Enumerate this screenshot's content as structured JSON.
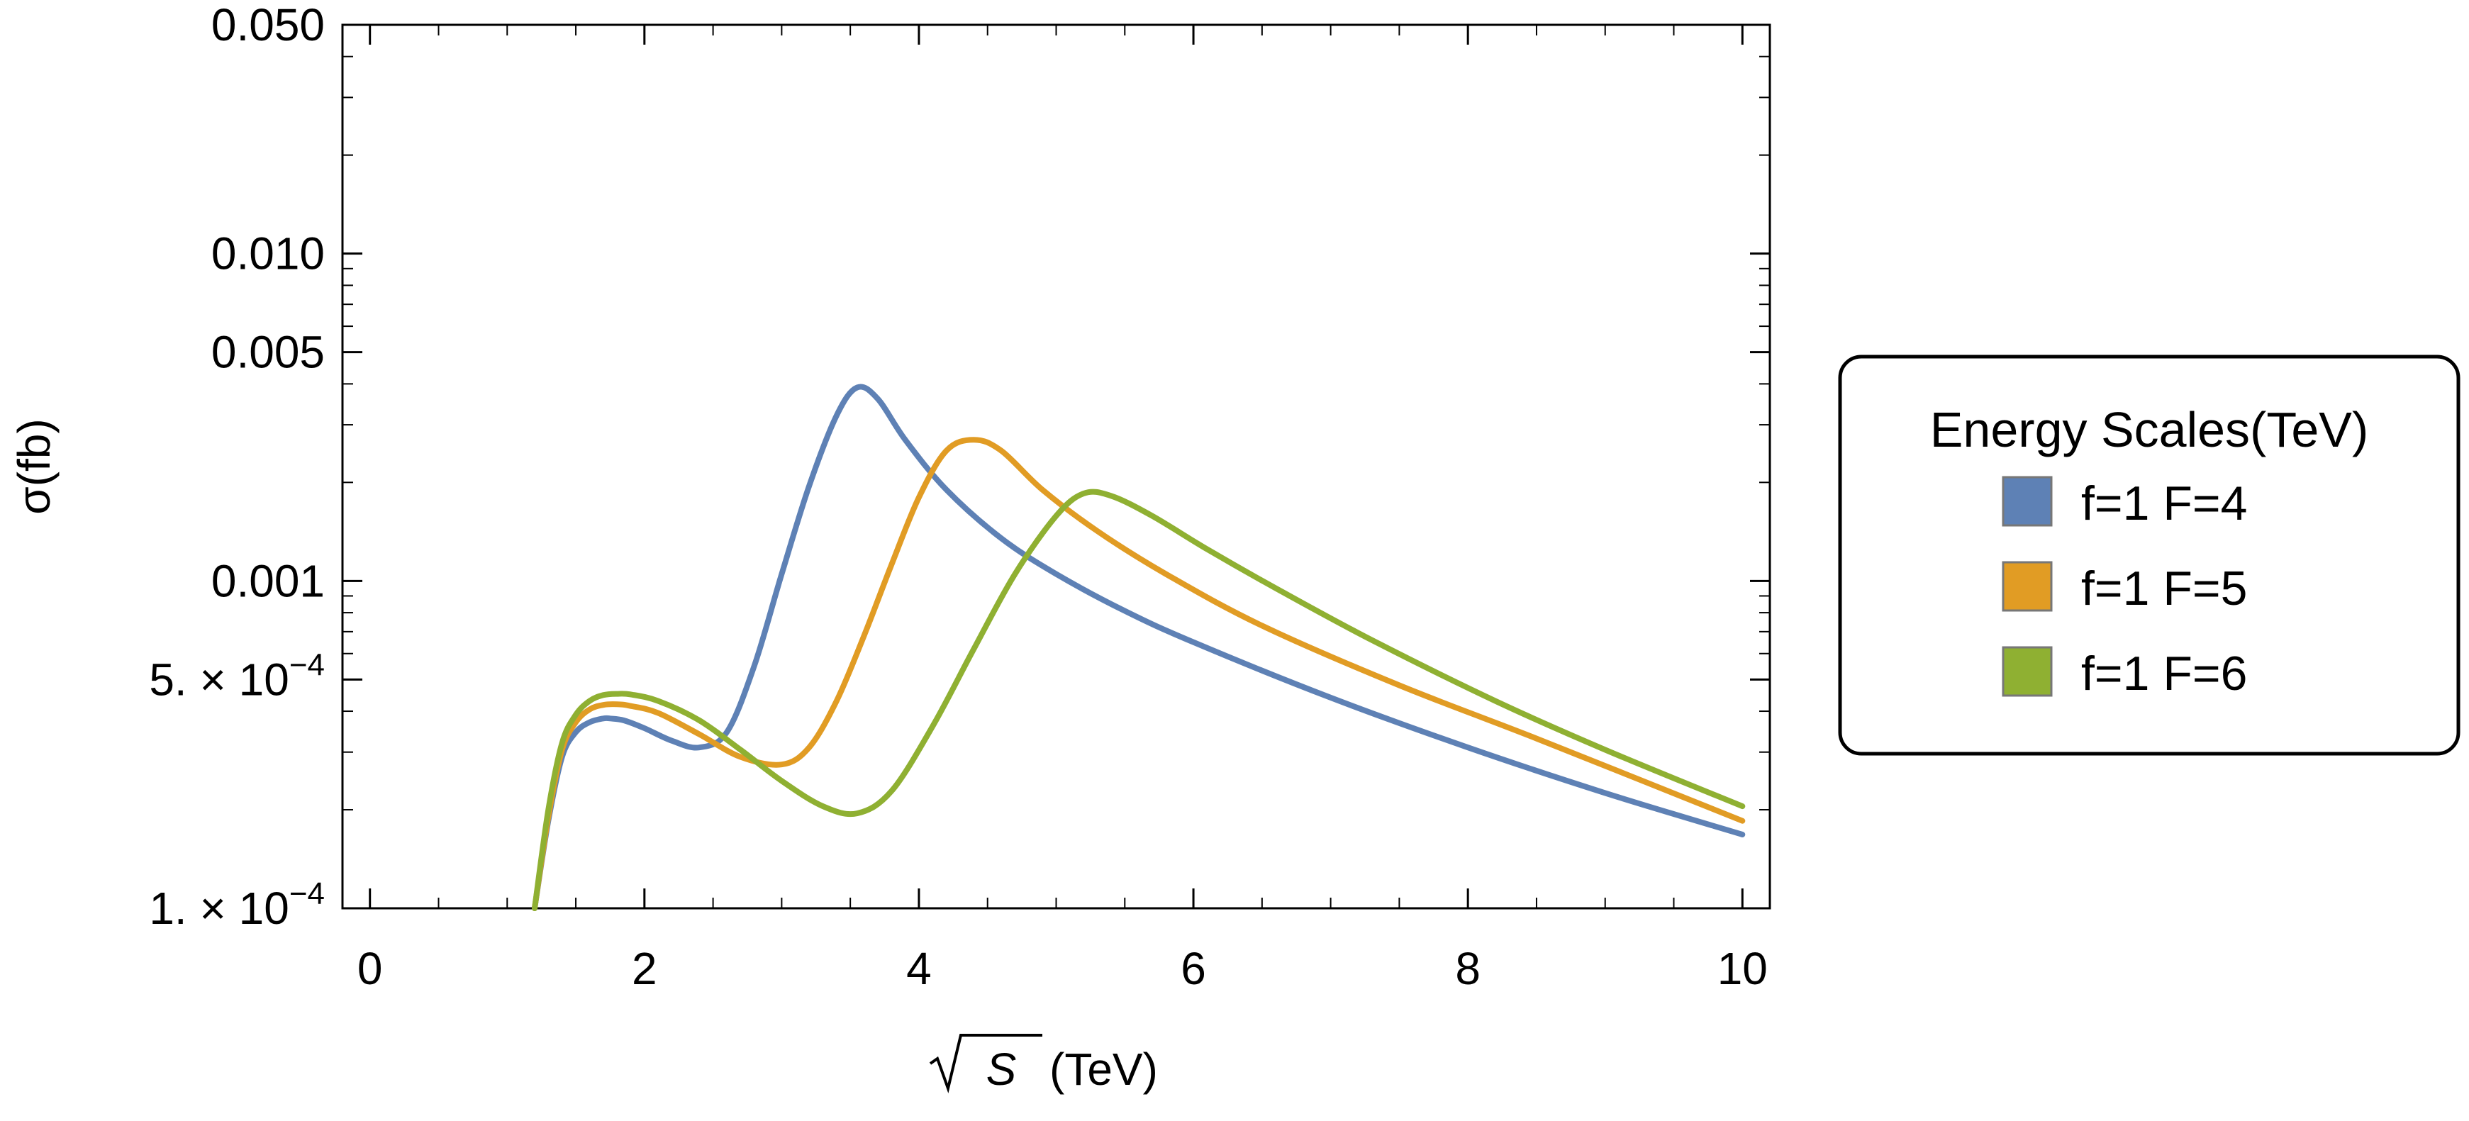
{
  "chart_data": {
    "type": "line",
    "xlabel": "(TeV)",
    "xlabel_math": "S",
    "ylabel": "σ(fb)",
    "xlim": [
      -0.2,
      10.2
    ],
    "ylim": [
      0.0001,
      0.05
    ],
    "yscale": "log",
    "x_ticks": [
      {
        "value": 0,
        "label": "0"
      },
      {
        "value": 2,
        "label": "2"
      },
      {
        "value": 4,
        "label": "4"
      },
      {
        "value": 6,
        "label": "6"
      },
      {
        "value": 8,
        "label": "8"
      },
      {
        "value": 10,
        "label": "10"
      }
    ],
    "y_ticks": [
      {
        "value": 0.0001,
        "mantissa": "1. × 10",
        "exp": "−4"
      },
      {
        "value": 0.0005,
        "mantissa": "5. × 10",
        "exp": "−4"
      },
      {
        "value": 0.001,
        "label": "0.001"
      },
      {
        "value": 0.005,
        "label": "0.005"
      },
      {
        "value": 0.01,
        "label": "0.010"
      },
      {
        "value": 0.05,
        "label": "0.050"
      }
    ],
    "grid": false,
    "legend": {
      "title": "Energy Scales(TeV)",
      "placement": "right"
    },
    "series": [
      {
        "name": "f=1 F=4",
        "color": "#5E81B5",
        "x": [
          1.2,
          1.3,
          1.4,
          1.5,
          1.6,
          1.7,
          1.75,
          1.85,
          2.0,
          2.2,
          2.4,
          2.6,
          2.8,
          3.0,
          3.2,
          3.4,
          3.55,
          3.7,
          3.9,
          4.2,
          4.6,
          5.0,
          5.5,
          6.0,
          7.0,
          8.0,
          9.0,
          10.0
        ],
        "y": [
          0.0001,
          0.000185,
          0.00029,
          0.000345,
          0.00037,
          0.00038,
          0.00038,
          0.000375,
          0.000355,
          0.000325,
          0.00031,
          0.000345,
          0.00055,
          0.00105,
          0.00195,
          0.0032,
          0.0039,
          0.0036,
          0.0027,
          0.0019,
          0.00135,
          0.00105,
          0.00081,
          0.00065,
          0.00044,
          0.00031,
          0.000225,
          0.000168
        ]
      },
      {
        "name": "f=1 F=5",
        "color": "#E19C24",
        "x": [
          1.2,
          1.3,
          1.4,
          1.5,
          1.6,
          1.7,
          1.8,
          1.9,
          2.1,
          2.4,
          2.7,
          3.0,
          3.2,
          3.4,
          3.6,
          3.8,
          4.0,
          4.2,
          4.4,
          4.6,
          4.9,
          5.3,
          5.8,
          6.5,
          7.5,
          8.5,
          10.0
        ],
        "y": [
          0.0001,
          0.00019,
          0.000305,
          0.00037,
          0.000405,
          0.000418,
          0.00042,
          0.000415,
          0.000395,
          0.00034,
          0.00029,
          0.000275,
          0.00031,
          0.00043,
          0.00068,
          0.00112,
          0.0018,
          0.0025,
          0.0027,
          0.0025,
          0.0019,
          0.00142,
          0.00105,
          0.00073,
          0.00048,
          0.00033,
          0.000185
        ]
      },
      {
        "name": "f=1 F=6",
        "color": "#8FB032",
        "x": [
          1.2,
          1.3,
          1.4,
          1.5,
          1.6,
          1.7,
          1.8,
          1.9,
          2.1,
          2.4,
          2.7,
          3.0,
          3.3,
          3.55,
          3.8,
          4.1,
          4.4,
          4.7,
          5.0,
          5.2,
          5.4,
          5.7,
          6.1,
          6.6,
          7.3,
          8.2,
          9.0,
          10.0
        ],
        "y": [
          0.0001,
          0.0002,
          0.00032,
          0.00039,
          0.00043,
          0.000448,
          0.000452,
          0.00045,
          0.00043,
          0.000375,
          0.000305,
          0.000245,
          0.000205,
          0.000195,
          0.000228,
          0.00036,
          0.00062,
          0.00105,
          0.00158,
          0.00185,
          0.00182,
          0.00158,
          0.00125,
          0.00095,
          0.00066,
          0.00043,
          0.000305,
          0.000205
        ]
      }
    ]
  }
}
